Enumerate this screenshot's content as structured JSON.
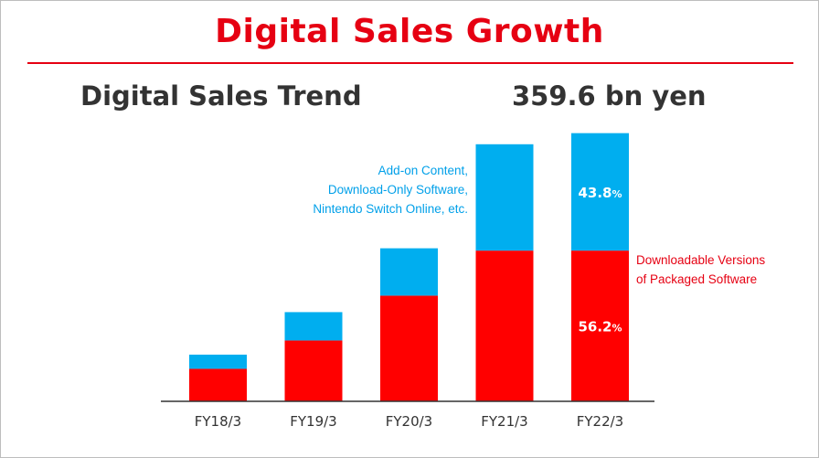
{
  "header": {
    "title": "Digital Sales Growth"
  },
  "chart_data": {
    "type": "bar",
    "stacked": true,
    "title": "Digital Sales Trend",
    "total_annotation": "359.6 bn yen",
    "categories": [
      "FY18/3",
      "FY19/3",
      "FY20/3",
      "FY21/3",
      "FY22/3"
    ],
    "unit": "bn yen",
    "ylim": [
      0,
      380
    ],
    "series": [
      {
        "name": "Downloadable Versions of Packaged Software",
        "legend_lines": [
          "Downloadable Versions",
          "of Packaged Software"
        ],
        "color": "#ff0000",
        "values": [
          43.6,
          81.6,
          141.7,
          202.1,
          202.1
        ],
        "data_labels": [
          "",
          "",
          "",
          "",
          "56.2%"
        ]
      },
      {
        "name": "Add-on Content, Download-Only Software, Nintendo Switch Online, etc.",
        "legend_lines": [
          "Add-on Content,",
          "Download-Only Software,",
          "Nintendo Switch Online, etc."
        ],
        "color": "#00aeef",
        "values": [
          19.0,
          38.0,
          63.5,
          142.6,
          157.5
        ],
        "data_labels": [
          "",
          "",
          "",
          "",
          "43.8%"
        ]
      }
    ],
    "grid": false,
    "axis_color": "#333333"
  }
}
